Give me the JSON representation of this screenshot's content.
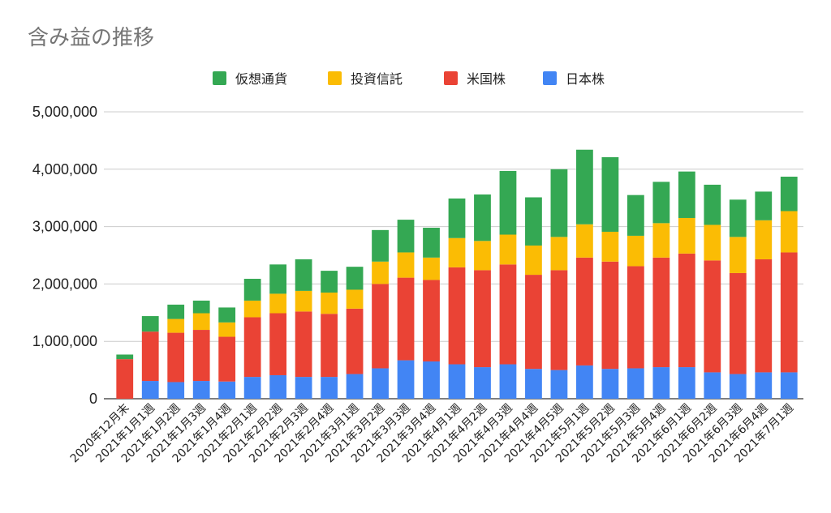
{
  "chart_data": {
    "type": "bar",
    "stacked": true,
    "title": "含み益の推移",
    "legend_position": "top",
    "grid": true,
    "ylim": [
      0,
      5000000
    ],
    "y_ticks": [
      "0",
      "1,000,000",
      "2,000,000",
      "3,000,000",
      "4,000,000",
      "5,000,000"
    ],
    "categories": [
      "2020年12月末",
      "2021年1月1週",
      "2021年1月2週",
      "2021年1月3週",
      "2021年1月4週",
      "2021年2月1週",
      "2021年2月2週",
      "2021年2月3週",
      "2021年2月4週",
      "2021年3月1週",
      "2021年3月2週",
      "2021年3月3週",
      "2021年3月4週",
      "2021年4月1週",
      "2021年4月2週",
      "2021年4月3週",
      "2021年4月4週",
      "2021年4月5週",
      "2021年5月1週",
      "2021年5月2週",
      "2021年5月3週",
      "2021年5月4週",
      "2021年6月1週",
      "2021年6月2週",
      "2021年6月3週",
      "2021年6月4週",
      "2021年7月1週"
    ],
    "legend": [
      {
        "name": "仮想通貨",
        "color": "#34a853"
      },
      {
        "name": "投資信託",
        "color": "#fbbc04"
      },
      {
        "name": "米国株",
        "color": "#ea4335"
      },
      {
        "name": "日本株",
        "color": "#4285f4"
      }
    ],
    "series": [
      {
        "name": "日本株",
        "color": "#4285f4",
        "values": [
          0,
          310000,
          290000,
          310000,
          300000,
          380000,
          410000,
          380000,
          380000,
          430000,
          530000,
          670000,
          650000,
          600000,
          550000,
          600000,
          520000,
          500000,
          580000,
          520000,
          530000,
          550000,
          550000,
          460000,
          430000,
          460000,
          460000
        ]
      },
      {
        "name": "米国株",
        "color": "#ea4335",
        "values": [
          690000,
          860000,
          860000,
          890000,
          780000,
          1040000,
          1080000,
          1140000,
          1100000,
          1140000,
          1470000,
          1440000,
          1420000,
          1690000,
          1690000,
          1740000,
          1640000,
          1740000,
          1880000,
          1870000,
          1780000,
          1910000,
          1980000,
          1950000,
          1760000,
          1970000,
          2090000
        ]
      },
      {
        "name": "投資信託",
        "color": "#fbbc04",
        "values": [
          0,
          0,
          240000,
          290000,
          250000,
          290000,
          340000,
          360000,
          370000,
          330000,
          390000,
          440000,
          390000,
          510000,
          510000,
          520000,
          510000,
          580000,
          580000,
          520000,
          530000,
          600000,
          620000,
          620000,
          630000,
          680000,
          720000
        ]
      },
      {
        "name": "仮想通貨",
        "color": "#34a853",
        "values": [
          80000,
          270000,
          250000,
          220000,
          260000,
          380000,
          510000,
          550000,
          380000,
          400000,
          550000,
          570000,
          520000,
          690000,
          810000,
          1110000,
          840000,
          1180000,
          1300000,
          1300000,
          710000,
          720000,
          810000,
          700000,
          650000,
          500000,
          600000
        ]
      }
    ]
  }
}
